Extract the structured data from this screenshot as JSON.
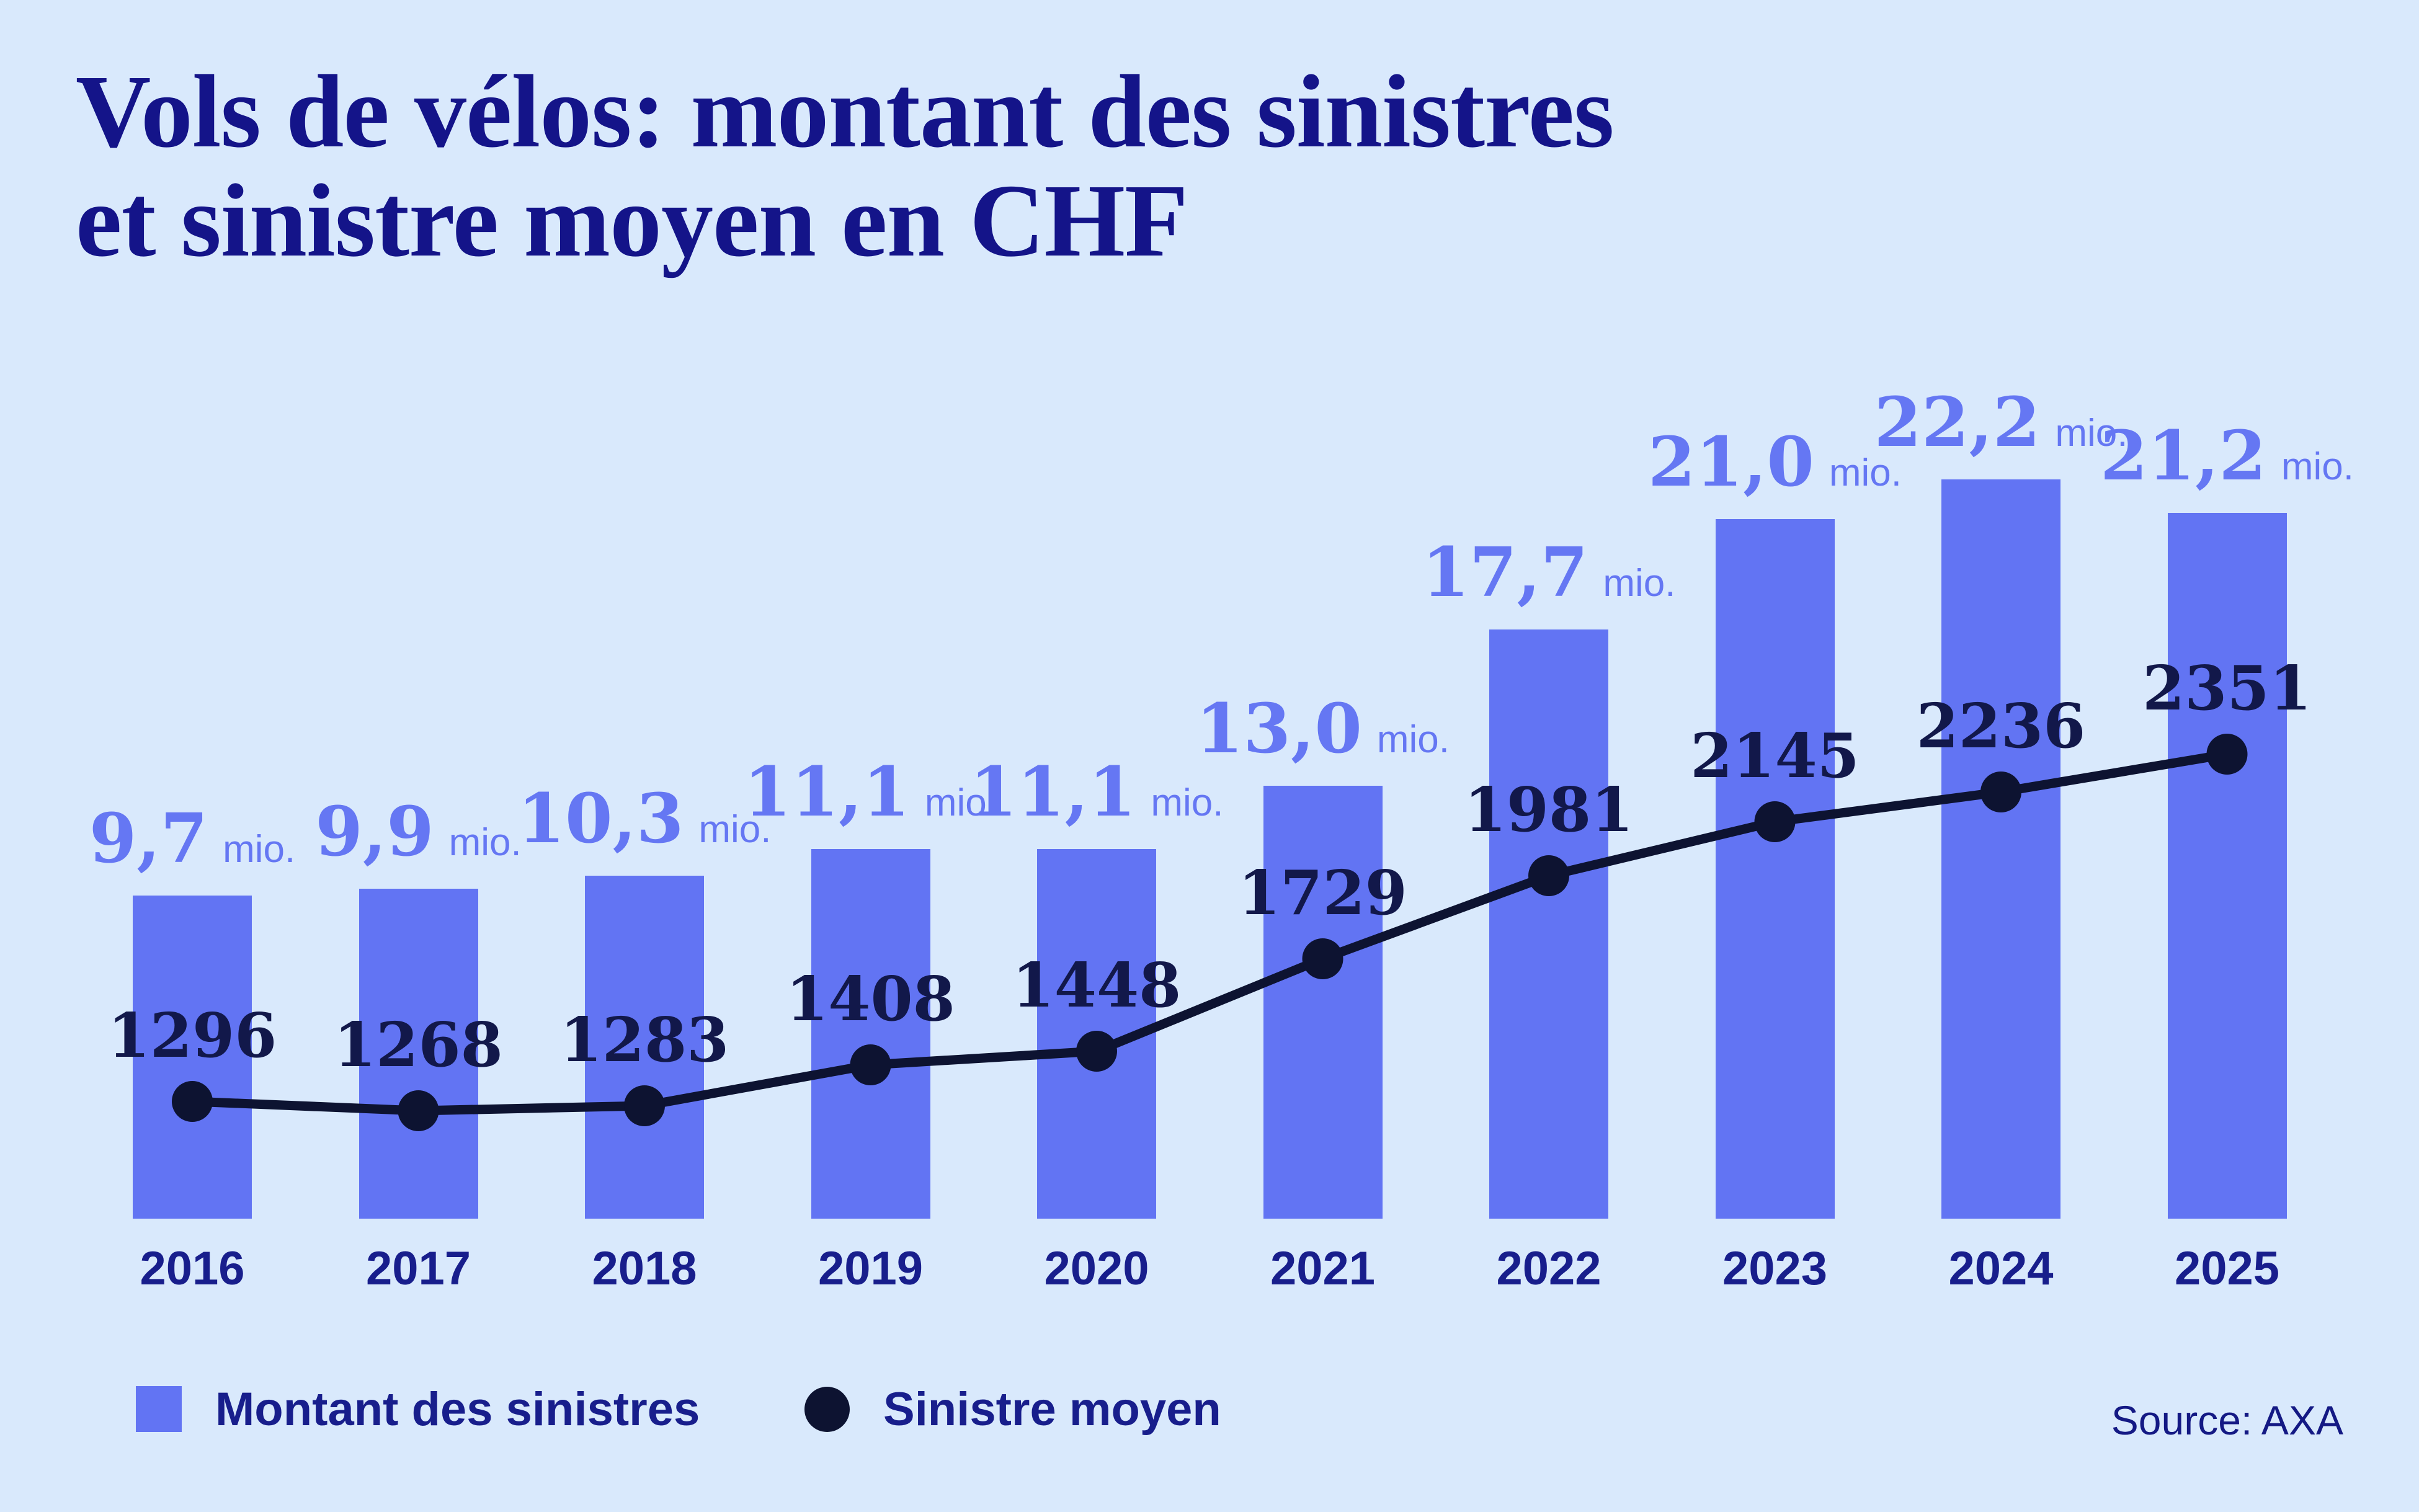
{
  "title": {
    "line1": "Vols de vélos: montant des sinistres",
    "line2": "et sinistre moyen en CHF"
  },
  "source_label": "Source: AXA",
  "legend": {
    "bars_label": "Montant des sinistres",
    "line_label": "Sinistre moyen"
  },
  "colors": {
    "background": "#D9E9FC",
    "bar": "#6274F3",
    "bar_label_text": "#6577F3",
    "title_navy": "#141489",
    "sans_navy": "#181E8C",
    "dark_navy": "#0D1331",
    "avg_number_navy": "#12184A"
  },
  "chart_data": {
    "type": "bar+line",
    "title": "Vols de vélos: montant des sinistres et sinistre moyen en CHF",
    "categories": [
      "2016",
      "2017",
      "2018",
      "2019",
      "2020",
      "2021",
      "2022",
      "2023",
      "2024",
      "2025"
    ],
    "series": [
      {
        "name": "Montant des sinistres",
        "type": "bar",
        "unit": "mio.",
        "values": [
          9.7,
          9.9,
          10.3,
          11.1,
          11.1,
          13.0,
          17.7,
          21.0,
          22.2,
          21.2
        ],
        "value_labels": [
          "9,7",
          "9,9",
          "10,3",
          "11,1",
          "11,1",
          "13,0",
          "17,7",
          "21,0",
          "22,2",
          "21,2"
        ]
      },
      {
        "name": "Sinistre moyen",
        "type": "line",
        "values": [
          1296,
          1268,
          1283,
          1408,
          1448,
          1729,
          1981,
          2145,
          2236,
          2351
        ],
        "value_labels": [
          "1296",
          "1268",
          "1283",
          "1408",
          "1448",
          "1729",
          "1981",
          "2145",
          "2236",
          "2351"
        ]
      }
    ],
    "xlabel": "",
    "ylabel": "",
    "grid": false,
    "legend_position": "bottom",
    "bar_value_axis": "millions CHF",
    "line_value_axis": "CHF"
  }
}
